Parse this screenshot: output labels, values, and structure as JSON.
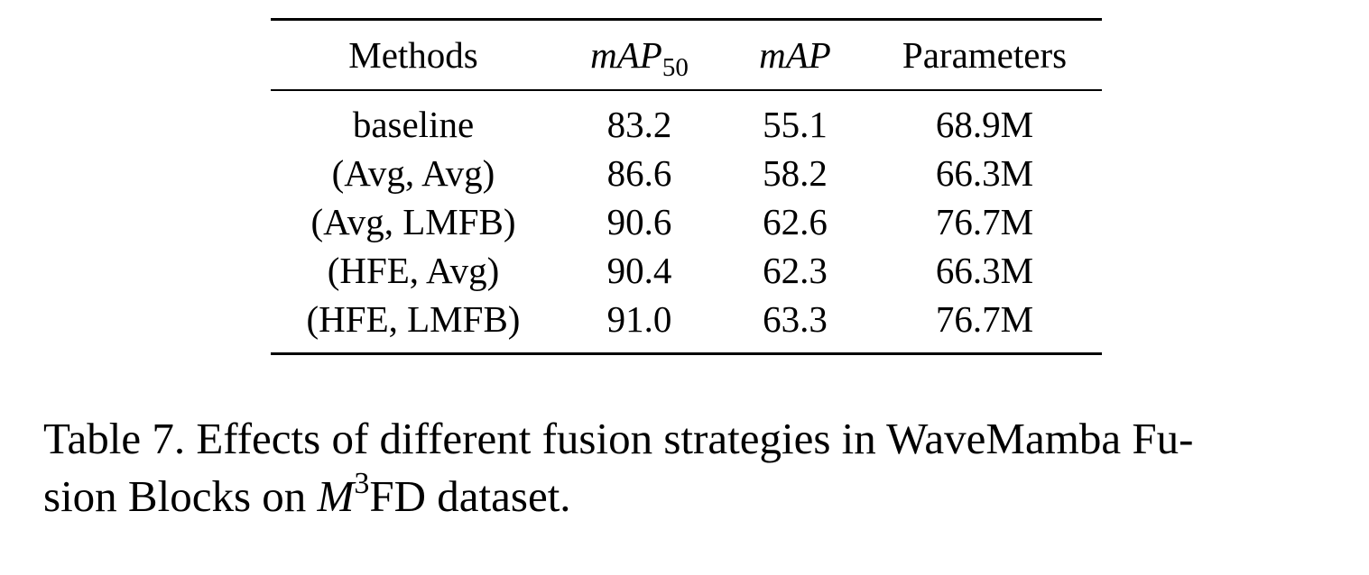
{
  "table": {
    "headers": {
      "methods": "Methods",
      "map50_base": "mAP",
      "map50_sub": "50",
      "map": "mAP",
      "params": "Parameters"
    },
    "rows": [
      {
        "method": "baseline",
        "map50": "83.2",
        "map": "55.1",
        "params": "68.9M"
      },
      {
        "method": "(Avg, Avg)",
        "map50": "86.6",
        "map": "58.2",
        "params": "66.3M"
      },
      {
        "method": "(Avg, LMFB)",
        "map50": "90.6",
        "map": "62.6",
        "params": "76.7M"
      },
      {
        "method": "(HFE, Avg)",
        "map50": "90.4",
        "map": "62.3",
        "params": "66.3M"
      },
      {
        "method": "(HFE, LMFB)",
        "map50": "91.0",
        "map": "63.3",
        "params": "76.7M"
      }
    ]
  },
  "caption": {
    "lead": "Table 7. Effects of different fusion strategies in WaveMamba Fu-",
    "line2_pre": "sion Blocks on ",
    "math_base": "M",
    "math_sup": "3",
    "line2_post": "FD dataset."
  }
}
